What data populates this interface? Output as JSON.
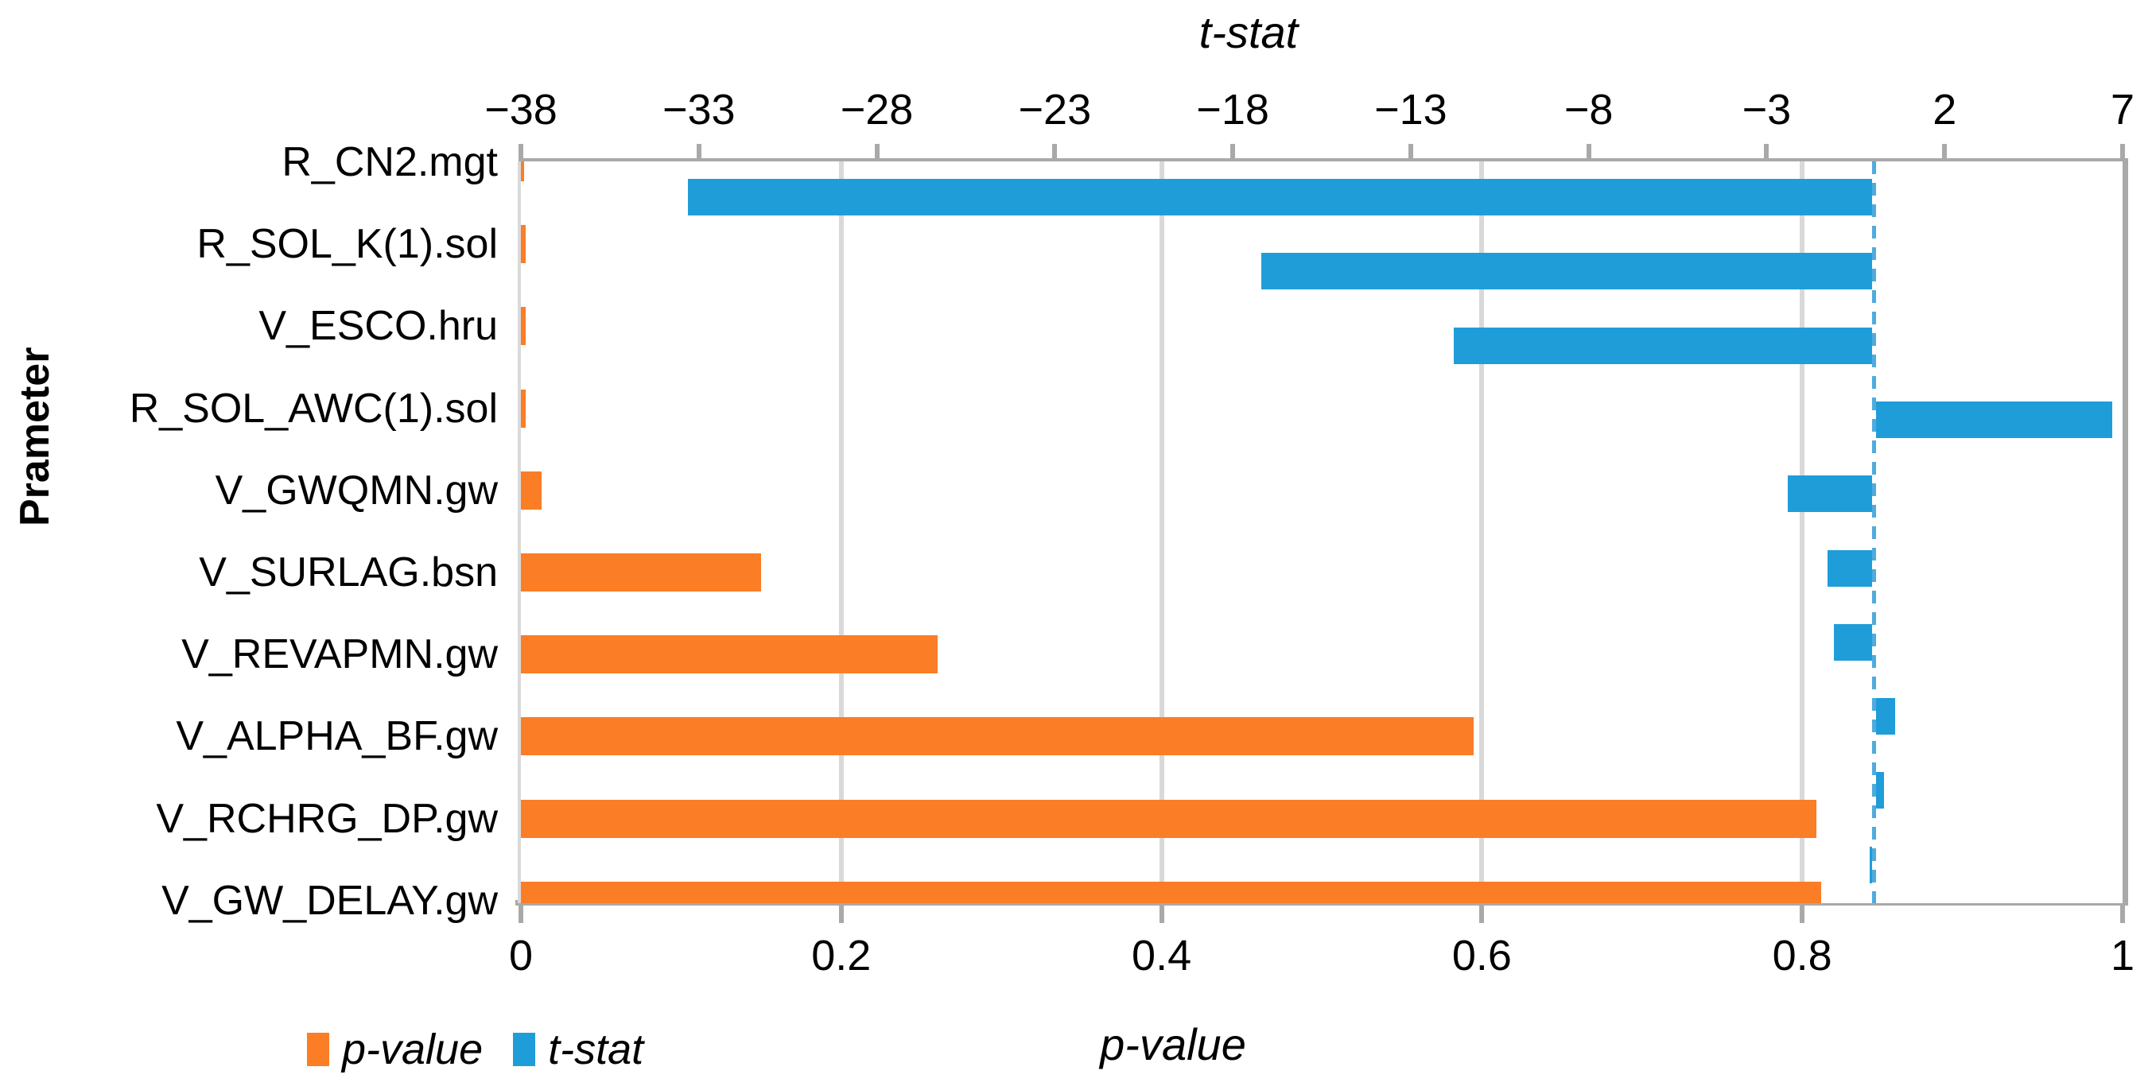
{
  "chart_data": {
    "type": "bar",
    "orientation": "horizontal",
    "y_axis_title": "Prameter",
    "top_axis_title": "t-stat",
    "bottom_axis_title": "p-value",
    "categories": [
      "R_CN2.mgt",
      "R_SOL_K(1).sol",
      "V_ESCO.hru",
      "R_SOL_AWC(1).sol",
      "V_GWQMN.gw",
      "V_SURLAG.bsn",
      "V_REVAPMN.gw",
      "V_ALPHA_BF.gw",
      "V_RCHRG_DP.gw",
      "V_GW_DELAY.gw"
    ],
    "series": [
      {
        "name": "p-value",
        "axis": "bottom",
        "color": "#FB7D25",
        "values": [
          0.002,
          0.003,
          0.003,
          0.003,
          0.013,
          0.15,
          0.26,
          0.595,
          0.809,
          0.812
        ]
      },
      {
        "name": "t-stat",
        "axis": "top",
        "color": "#1F9DD9",
        "values": [
          -33.3,
          -17.2,
          -11.8,
          6.7,
          -2.4,
          -1.3,
          -1.1,
          0.6,
          0.3,
          -0.1
        ]
      }
    ],
    "axes": {
      "top": {
        "label": "t-stat",
        "min": -38,
        "max": 7,
        "ticks": [
          -38,
          -33,
          -28,
          -23,
          -18,
          -13,
          -8,
          -3,
          2,
          7
        ]
      },
      "bottom": {
        "label": "p-value",
        "min": 0,
        "max": 1,
        "ticks": [
          0,
          0.2,
          0.4,
          0.6,
          0.8,
          1
        ],
        "gridlines": [
          0.2,
          0.4,
          0.6,
          0.8
        ]
      }
    },
    "reference_line": {
      "axis": "top",
      "value": 0,
      "style": "dashed",
      "color": "#4FABDE"
    },
    "grid": "vertical-only",
    "legend": {
      "position": "bottom-left",
      "items": [
        {
          "label": "p-value",
          "color": "#FB7D25"
        },
        {
          "label": "t-stat",
          "color": "#1F9DD9"
        }
      ]
    },
    "colors": {
      "axis_line": "#A9A9A9",
      "left_axis_line": "#D9D9D9",
      "gridline": "#D9D9D9",
      "background": "#FFFFFF",
      "text": "#000000"
    }
  }
}
